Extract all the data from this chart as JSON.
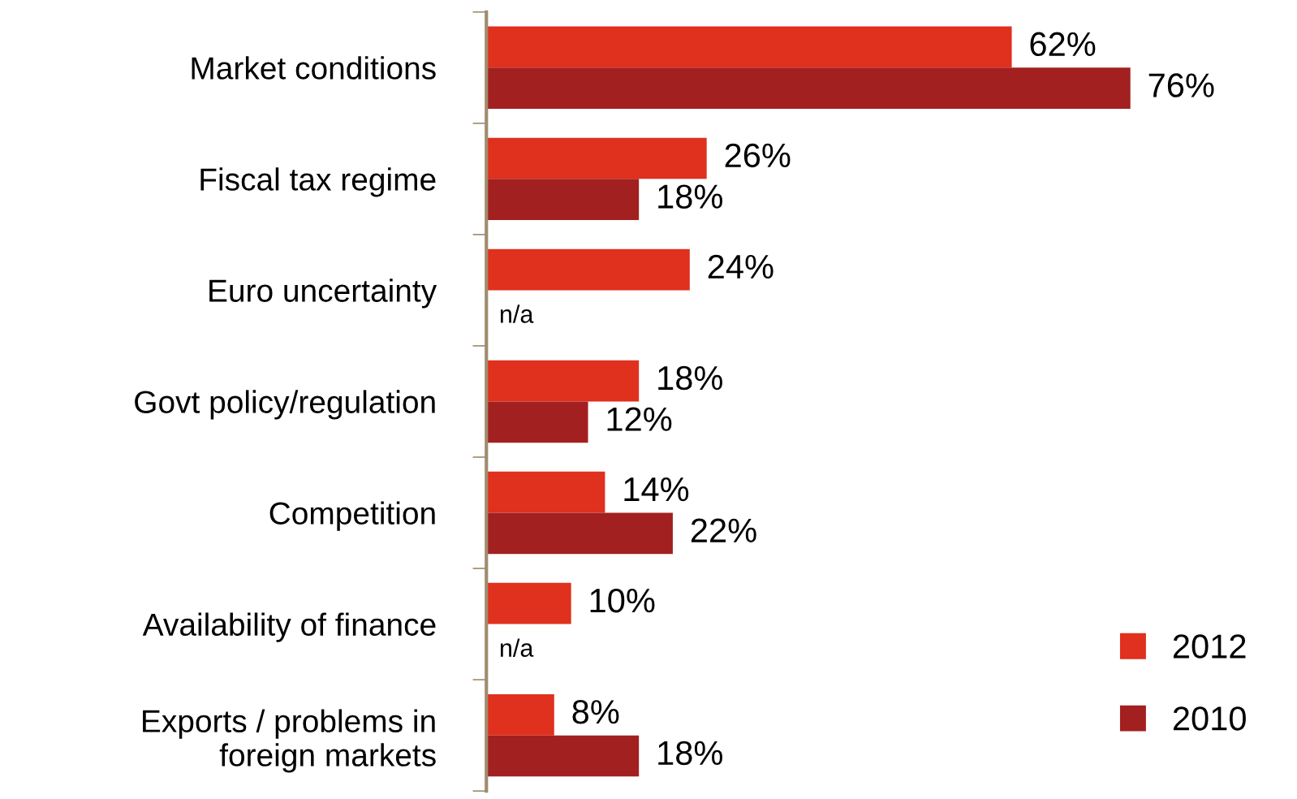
{
  "chart_data": {
    "type": "bar",
    "orientation": "horizontal",
    "categories": [
      "Market conditions",
      "Fiscal tax regime",
      "Euro uncertainty",
      "Govt policy/regulation",
      "Competition",
      "Availability of finance",
      "Exports / problems in\nforeign markets"
    ],
    "series": [
      {
        "name": "2012",
        "color": "#e0301e",
        "values": [
          62,
          26,
          24,
          18,
          14,
          10,
          8
        ],
        "value_labels": [
          "62%",
          "26%",
          "24%",
          "18%",
          "14%",
          "10%",
          "8%"
        ]
      },
      {
        "name": "2010",
        "color": "#a32020",
        "values": [
          76,
          18,
          null,
          12,
          22,
          null,
          18
        ],
        "value_labels": [
          "76%",
          "18%",
          "n/a",
          "12%",
          "22%",
          "n/a",
          "18%"
        ]
      }
    ],
    "legend": "bottom right",
    "grid": false
  }
}
